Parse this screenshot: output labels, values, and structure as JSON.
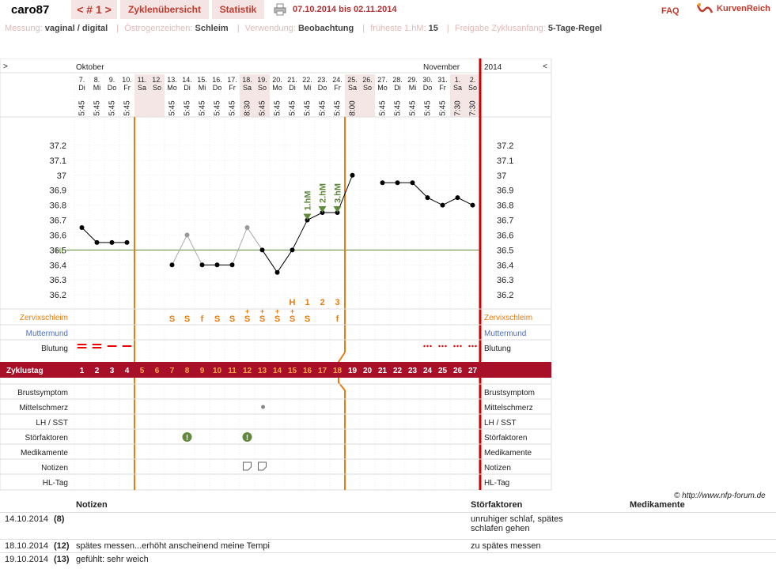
{
  "header": {
    "username": "caro87",
    "cycle_nav": "< # 1 >",
    "tab_overview": "Zyklenübersicht",
    "tab_stats": "Statistik",
    "date_range": "07.10.2014 bis 02.11.2014",
    "faq": "FAQ",
    "logo_text": "KurvenReich"
  },
  "settings": {
    "measure_label": "Messung:",
    "measure_value": "vaginal / digital",
    "estrogen_label": "Östrogenzeichen:",
    "estrogen_value": "Schleim",
    "usage_label": "Verwendung:",
    "usage_value": "Beobachtung",
    "first_hm_label": "früheste 1.hM:",
    "first_hm_value": "15",
    "release_label": "Freigabe Zyklusanfang:",
    "release_value": "5-Tage-Regel"
  },
  "chart_data": {
    "type": "line",
    "month_left": "Oktober",
    "month_right": "November",
    "year": "2014",
    "nav_left": ">",
    "nav_right": "<",
    "days": [
      {
        "date": "7.",
        "wd": "Di",
        "time": "5:45",
        "cd": "1",
        "weekend": false
      },
      {
        "date": "8.",
        "wd": "Mi",
        "time": "5:45",
        "cd": "2",
        "weekend": false
      },
      {
        "date": "9.",
        "wd": "Do",
        "time": "5:45",
        "cd": "3",
        "weekend": false
      },
      {
        "date": "10.",
        "wd": "Fr",
        "time": "5:45",
        "cd": "4",
        "weekend": false
      },
      {
        "date": "11.",
        "wd": "Sa",
        "time": "",
        "cd": "5",
        "weekend": true
      },
      {
        "date": "12.",
        "wd": "So",
        "time": "",
        "cd": "6",
        "weekend": true
      },
      {
        "date": "13.",
        "wd": "Mo",
        "time": "5:45",
        "cd": "7",
        "weekend": false
      },
      {
        "date": "14.",
        "wd": "Di",
        "time": "5:45",
        "cd": "8",
        "weekend": false
      },
      {
        "date": "15.",
        "wd": "Mi",
        "time": "5:45",
        "cd": "9",
        "weekend": false
      },
      {
        "date": "16.",
        "wd": "Do",
        "time": "5:45",
        "cd": "10",
        "weekend": false
      },
      {
        "date": "17.",
        "wd": "Fr",
        "time": "5:45",
        "cd": "11",
        "weekend": false
      },
      {
        "date": "18.",
        "wd": "Sa",
        "time": "8:30",
        "cd": "12",
        "weekend": true
      },
      {
        "date": "19.",
        "wd": "So",
        "time": "5:45",
        "cd": "13",
        "weekend": true
      },
      {
        "date": "20.",
        "wd": "Mo",
        "time": "5:45",
        "cd": "14",
        "weekend": false
      },
      {
        "date": "21.",
        "wd": "Di",
        "time": "5:45",
        "cd": "15",
        "weekend": false
      },
      {
        "date": "22.",
        "wd": "Mi",
        "time": "5:45",
        "cd": "16",
        "weekend": false
      },
      {
        "date": "23.",
        "wd": "Do",
        "time": "5:45",
        "cd": "17",
        "weekend": false
      },
      {
        "date": "24.",
        "wd": "Fr",
        "time": "5:45",
        "cd": "18",
        "weekend": false
      },
      {
        "date": "25.",
        "wd": "Sa",
        "time": "8:00",
        "cd": "19",
        "weekend": true
      },
      {
        "date": "26.",
        "wd": "So",
        "time": "",
        "cd": "20",
        "weekend": true
      },
      {
        "date": "27.",
        "wd": "Mo",
        "time": "5:45",
        "cd": "21",
        "weekend": false
      },
      {
        "date": "28.",
        "wd": "Di",
        "time": "5:45",
        "cd": "22",
        "weekend": false
      },
      {
        "date": "29.",
        "wd": "Mi",
        "time": "5:45",
        "cd": "23",
        "weekend": false
      },
      {
        "date": "30.",
        "wd": "Do",
        "time": "5:45",
        "cd": "24",
        "weekend": false
      },
      {
        "date": "31.",
        "wd": "Fr",
        "time": "5:45",
        "cd": "25",
        "weekend": false
      },
      {
        "date": "1.",
        "wd": "Sa",
        "time": "7:30",
        "cd": "26",
        "weekend": true
      },
      {
        "date": "2.",
        "wd": "So",
        "time": "7:30",
        "cd": "27",
        "weekend": true
      }
    ],
    "temps": [
      36.65,
      36.55,
      36.55,
      36.55,
      null,
      null,
      36.4,
      36.6,
      36.4,
      36.4,
      36.4,
      36.65,
      36.5,
      36.35,
      36.5,
      36.7,
      36.75,
      36.75,
      37.0,
      null,
      36.95,
      36.95,
      36.95,
      36.85,
      36.8,
      36.85,
      36.8
    ],
    "excluded": [
      false,
      false,
      false,
      false,
      false,
      false,
      false,
      true,
      false,
      false,
      false,
      true,
      false,
      false,
      false,
      false,
      false,
      false,
      false,
      false,
      false,
      false,
      false,
      false,
      false,
      false,
      false
    ],
    "hl_value": 36.5,
    "hl_label": "HL",
    "ylim": [
      36.1,
      37.3
    ],
    "y_ticks": [
      "37.2",
      "37.1",
      "37",
      "36.9",
      "36.8",
      "36.7",
      "36.6",
      "36.5",
      "36.4",
      "36.3",
      "36.2"
    ],
    "high_marks": [
      {
        "day_index": 15,
        "label": "1.hM"
      },
      {
        "day_index": 16,
        "label": "2.hM"
      },
      {
        "day_index": 17,
        "label": "3.hM"
      }
    ],
    "peak_labels": [
      "",
      "",
      "",
      "",
      "",
      "",
      "",
      "",
      "",
      "",
      "",
      "",
      "",
      "",
      "H",
      "1",
      "2",
      "3",
      "",
      "",
      "",
      "",
      "",
      "",
      "",
      "",
      ""
    ],
    "mucus": [
      "",
      "",
      "",
      "",
      "",
      "",
      "S",
      "S",
      "f",
      "S",
      "S",
      "S+",
      "S+",
      "S+",
      "S+",
      "S",
      "",
      "f",
      "",
      "",
      "",
      "",
      "",
      "",
      "",
      "",
      ""
    ],
    "bleeding": [
      "heavy",
      "heavy",
      "medium",
      "medium",
      "",
      "",
      "",
      "",
      "",
      "",
      "",
      "",
      "",
      "",
      "",
      "",
      "",
      "",
      "",
      "",
      "",
      "",
      "",
      "spot",
      "spot",
      "spot",
      "spot"
    ],
    "row_labels": {
      "mucus": "Zervixschleim",
      "cervix": "Muttermund",
      "bleeding": "Blutung",
      "cycle_day": "Zyklustag",
      "breast": "Brustsymptom",
      "midpain": "Mittelschmerz",
      "lh": "LH / SST",
      "disturb": "Störfaktoren",
      "meds": "Medikamente",
      "notes": "Notizen",
      "hl_day": "HL-Tag"
    },
    "midpain_day": 12,
    "disturb_days": [
      7,
      11
    ],
    "note_days": [
      11,
      12
    ],
    "colors": {
      "accent": "#c0392b",
      "cycle_bar": "#a8102a",
      "orange": "#e87c0c",
      "green": "#5f8a3a",
      "blue": "#4a6fc2",
      "grid": "#e8d8d8"
    }
  },
  "footer": {
    "copyright": "© http://www.nfp-forum.de",
    "headers": {
      "notes": "Notizen",
      "disturb": "Störfaktoren",
      "meds": "Medikamente"
    },
    "rows": [
      {
        "date": "14.10.2014",
        "day": "(8)",
        "note": "",
        "disturb": "unruhiger schlaf, spätes schlafen gehen",
        "meds": ""
      },
      {
        "date": "18.10.2014",
        "day": "(12)",
        "note": "spätes messen...erhöht anscheinend meine Tempi",
        "disturb": "zu spätes messen",
        "meds": ""
      },
      {
        "date": "19.10.2014",
        "day": "(13)",
        "note": "gefühlt: sehr weich",
        "disturb": "",
        "meds": ""
      }
    ]
  }
}
